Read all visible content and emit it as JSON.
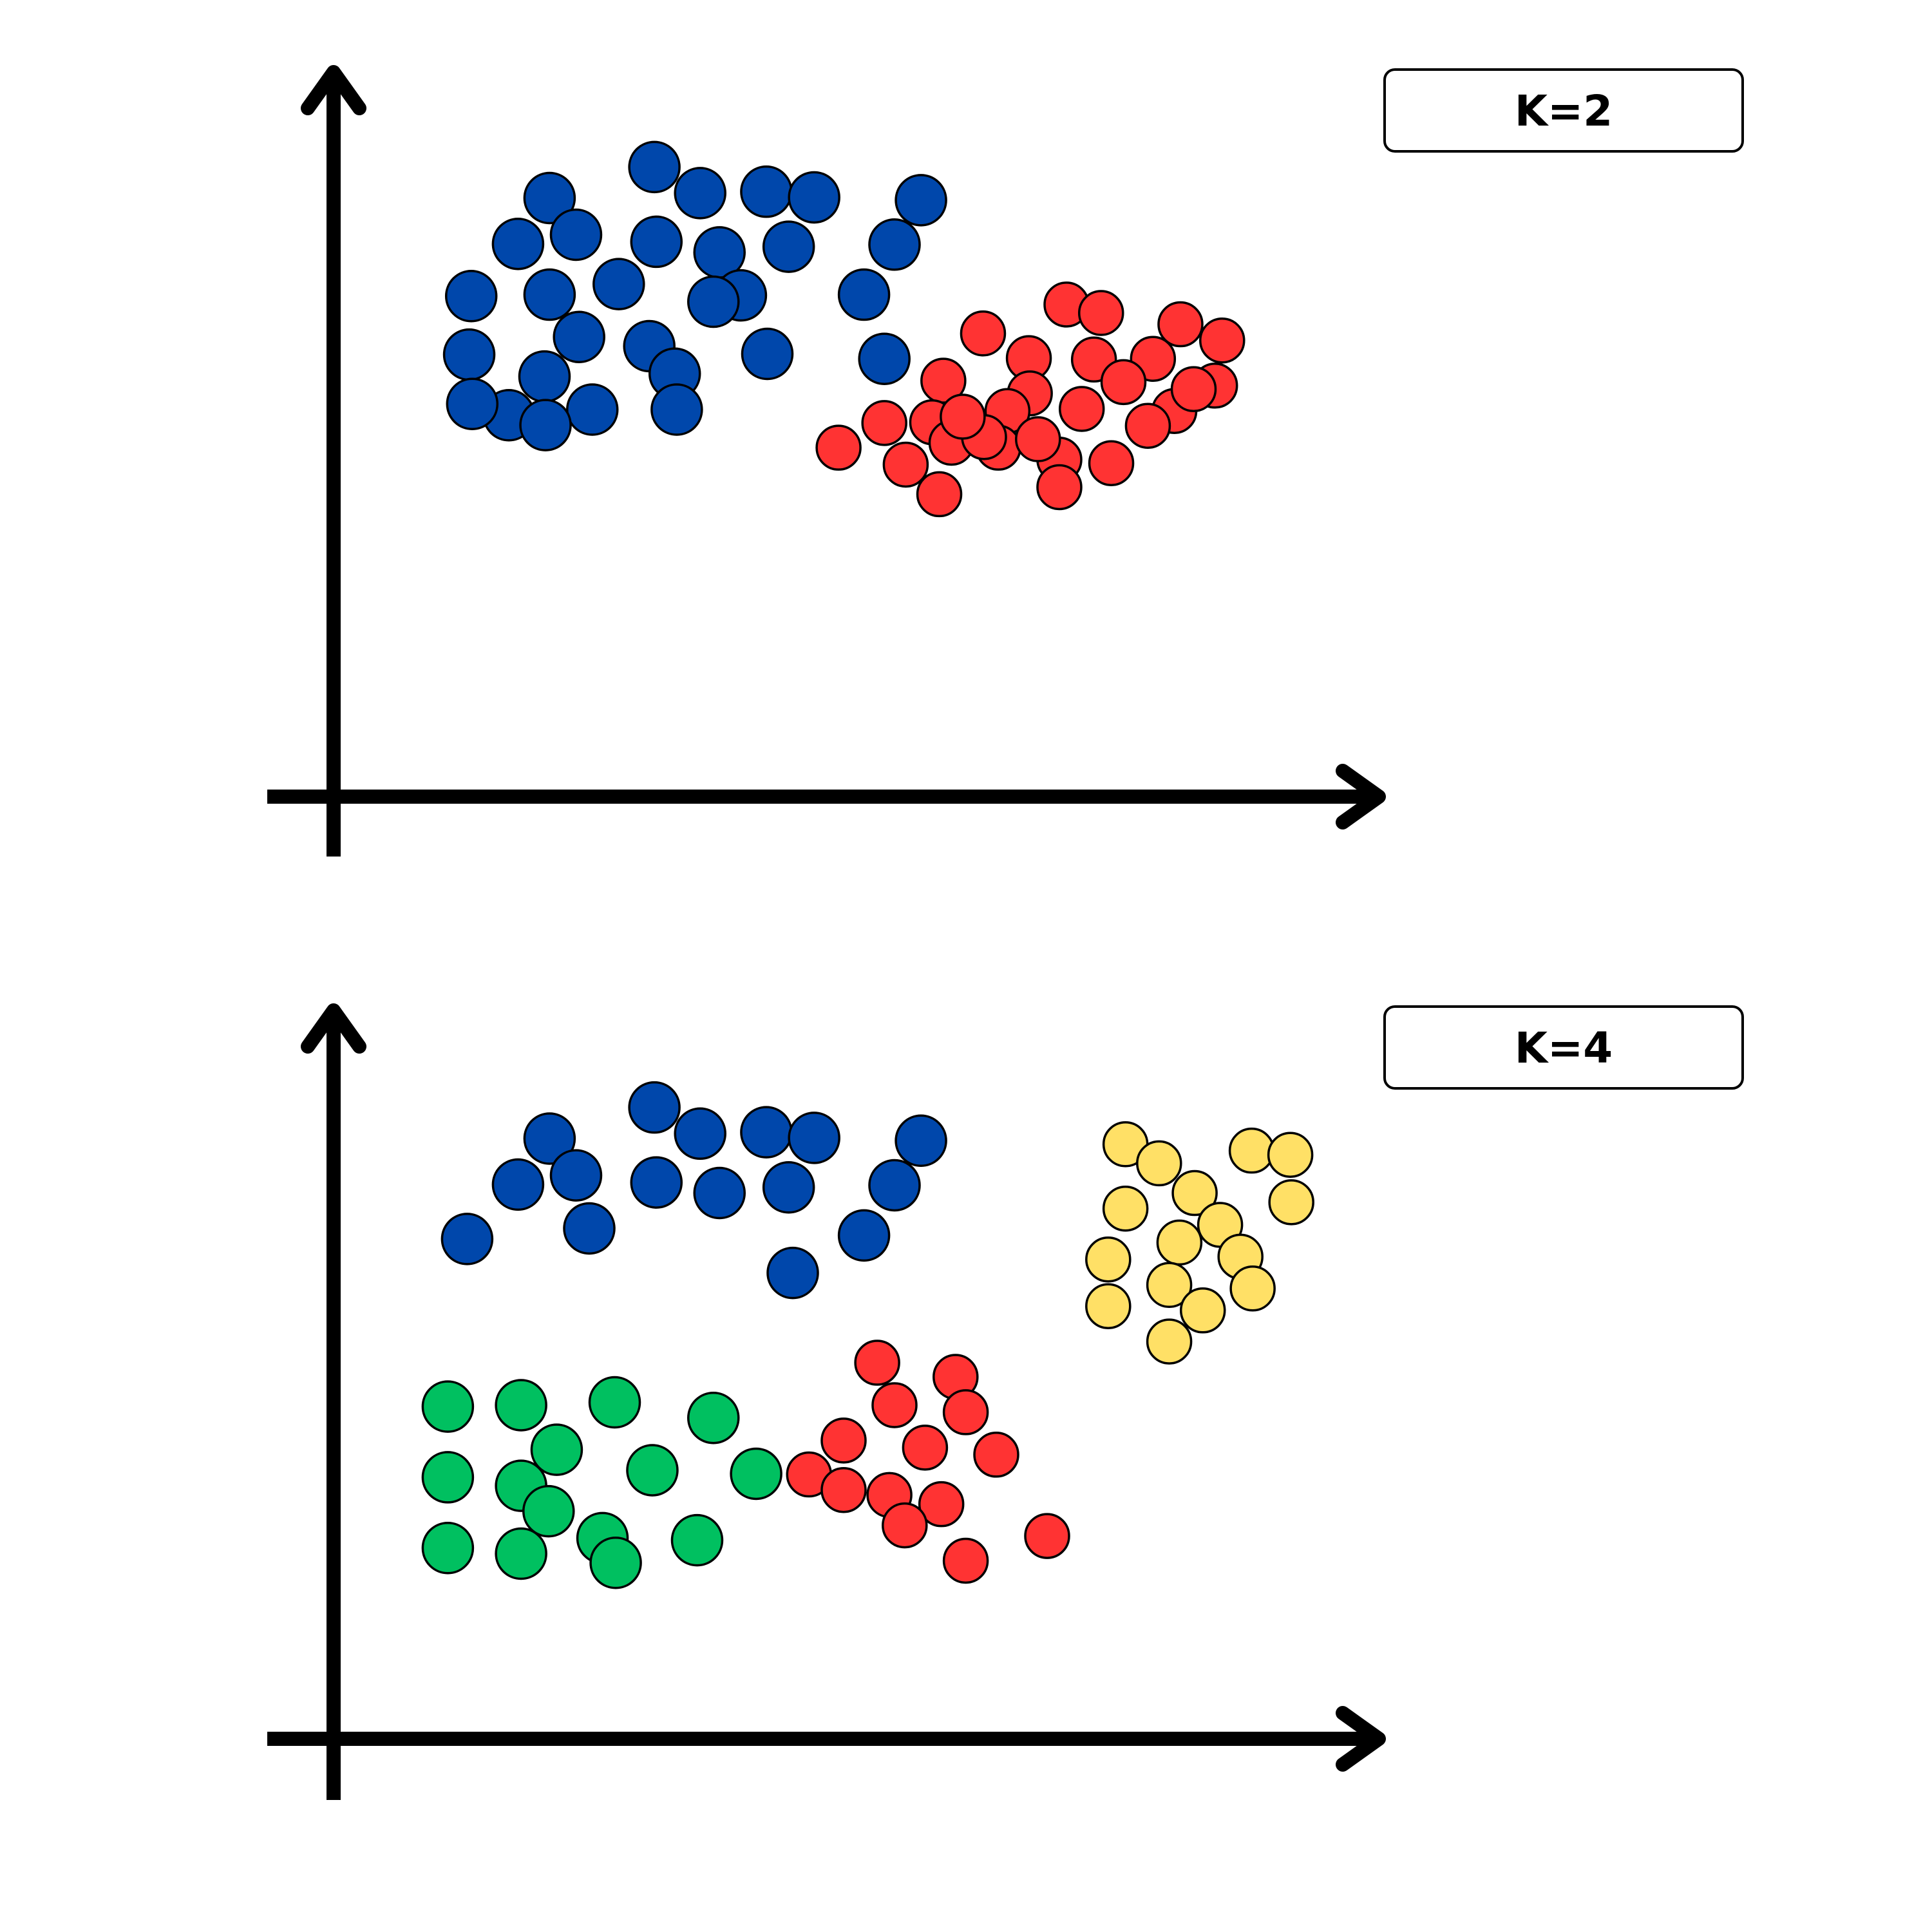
{
  "colors": {
    "blue": "#0047AB",
    "red": "#FF3333",
    "green": "#00C060",
    "yellow": "#FFE066",
    "outline": "#000000"
  },
  "chart_data": [
    {
      "type": "scatter",
      "title": "K=2",
      "xlabel": "",
      "ylabel": "",
      "xlim": [
        0,
        1000
      ],
      "ylim": [
        0,
        1000
      ],
      "grid": false,
      "series": [
        {
          "color": "blue",
          "points": [
            [
              314,
              891
            ],
            [
              211,
              847
            ],
            [
              359,
              854
            ],
            [
              424,
              856
            ],
            [
              471,
              848
            ],
            [
              576,
              844
            ],
            [
              180,
              782
            ],
            [
              237,
              795
            ],
            [
              316,
              785
            ],
            [
              378,
              770
            ],
            [
              446,
              778
            ],
            [
              550,
              781
            ],
            [
              134,
              708
            ],
            [
              211,
              710
            ],
            [
              279,
              725
            ],
            [
              399,
              709
            ],
            [
              520,
              710
            ],
            [
              240,
              650
            ],
            [
              309,
              637
            ],
            [
              425,
              626
            ],
            [
              132,
              625
            ],
            [
              206,
              594
            ],
            [
              334,
              598
            ],
            [
              171,
              539
            ],
            [
              253,
              547
            ],
            [
              540,
              619
            ],
            [
              372,
              700
            ],
            [
              207,
              525
            ],
            [
              336,
              547
            ],
            [
              135,
              555
            ]
          ]
        },
        {
          "color": "red",
          "points": [
            [
              719,
              696
            ],
            [
              637,
              655
            ],
            [
              753,
              684
            ],
            [
              831,
              668
            ],
            [
              872,
              645
            ],
            [
              804,
              619
            ],
            [
              746,
              618
            ],
            [
              682,
              620
            ],
            [
              865,
              581
            ],
            [
              598,
              588
            ],
            [
              683,
              570
            ],
            [
              775,
              586
            ],
            [
              587,
              529
            ],
            [
              661,
              545
            ],
            [
              734,
              548
            ],
            [
              825,
              545
            ],
            [
              844,
              576
            ],
            [
              495,
              493
            ],
            [
              561,
              469
            ],
            [
              652,
              493
            ],
            [
              712,
              476
            ],
            [
              799,
              524
            ],
            [
              606,
              500
            ],
            [
              763,
              471
            ],
            [
              638,
              508
            ],
            [
              691,
              505
            ],
            [
              712,
              437
            ],
            [
              594,
              427
            ],
            [
              540,
              528
            ],
            [
              617,
              537
            ]
          ]
        }
      ]
    },
    {
      "type": "scatter",
      "title": "K=4",
      "xlabel": "",
      "ylabel": "",
      "xlim": [
        0,
        1000
      ],
      "ylim": [
        0,
        1000
      ],
      "grid": false,
      "series": [
        {
          "color": "blue",
          "points": [
            [
              314,
              891
            ],
            [
              211,
              847
            ],
            [
              359,
              854
            ],
            [
              424,
              856
            ],
            [
              471,
              848
            ],
            [
              576,
              844
            ],
            [
              180,
              782
            ],
            [
              237,
              795
            ],
            [
              316,
              785
            ],
            [
              378,
              770
            ],
            [
              446,
              778
            ],
            [
              550,
              781
            ],
            [
              520,
              710
            ],
            [
              450,
              657
            ],
            [
              250,
              720
            ],
            [
              130,
              705
            ]
          ]
        },
        {
          "color": "green",
          "points": [
            [
              111,
              468
            ],
            [
              183,
              470
            ],
            [
              275,
              474
            ],
            [
              372,
              452
            ],
            [
              218,
              407
            ],
            [
              312,
              378
            ],
            [
              111,
              368
            ],
            [
              183,
              356
            ],
            [
              414,
              373
            ],
            [
              111,
              268
            ],
            [
              183,
              260
            ],
            [
              263,
              282
            ],
            [
              356,
              279
            ],
            [
              210,
              320
            ],
            [
              276,
              247
            ]
          ]
        },
        {
          "color": "red",
          "points": [
            [
              533,
              530
            ],
            [
              610,
              510
            ],
            [
              550,
              470
            ],
            [
              620,
              460
            ],
            [
              500,
              420
            ],
            [
              580,
              410
            ],
            [
              650,
              400
            ],
            [
              466,
              372
            ],
            [
              545,
              343
            ],
            [
              596,
              330
            ],
            [
              700,
              285
            ],
            [
              620,
              250
            ],
            [
              500,
              350
            ],
            [
              560,
              300
            ]
          ]
        },
        {
          "color": "yellow",
          "points": [
            [
              777,
              839
            ],
            [
              810,
              812
            ],
            [
              901,
              830
            ],
            [
              939,
              824
            ],
            [
              845,
              770
            ],
            [
              777,
              748
            ],
            [
              870,
              725
            ],
            [
              940,
              757
            ],
            [
              830,
              700
            ],
            [
              760,
              676
            ],
            [
              890,
              680
            ],
            [
              820,
              640
            ],
            [
              760,
              610
            ],
            [
              853,
              604
            ],
            [
              820,
              560
            ],
            [
              902,
              635
            ]
          ]
        }
      ]
    }
  ]
}
